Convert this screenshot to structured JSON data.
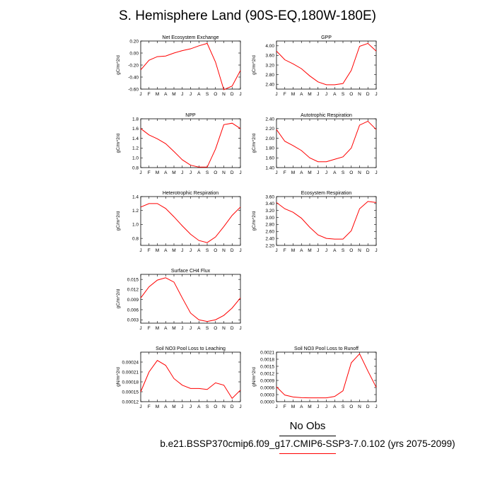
{
  "page": {
    "title": "S. Hemisphere Land (90S-EQ,180W-180E)",
    "obs_label": "No Obs",
    "case_label": "b.e21.BSSP370cmip6.f09_g17.CMIP6-SSP3-7.0.102 (yrs 2075-2099)",
    "line_color": "#ff0000"
  },
  "chart_data": [
    {
      "type": "line",
      "title": "Net Ecosystem Exchange",
      "ylabel": "gC/m^2/d",
      "x": [
        "J",
        "F",
        "M",
        "A",
        "M",
        "J",
        "J",
        "A",
        "S",
        "O",
        "N",
        "D",
        "J"
      ],
      "ylim": [
        -0.6,
        0.2
      ],
      "yticks": [
        "-0.60",
        "-0.40",
        "-0.20",
        "0.00",
        "0.20"
      ],
      "series": [
        {
          "values": [
            -0.28,
            -0.12,
            -0.06,
            -0.05,
            0.0,
            0.04,
            0.07,
            0.12,
            0.16,
            -0.15,
            -0.61,
            -0.55,
            -0.29
          ]
        }
      ]
    },
    {
      "type": "line",
      "title": "GPP",
      "ylabel": "gC/m^2/d",
      "x": [
        "J",
        "F",
        "M",
        "A",
        "M",
        "J",
        "J",
        "A",
        "S",
        "O",
        "N",
        "D",
        "J"
      ],
      "ylim": [
        2.2,
        4.2
      ],
      "yticks": [
        "2.40",
        "2.80",
        "3.20",
        "3.60",
        "4.00"
      ],
      "series": [
        {
          "values": [
            3.78,
            3.42,
            3.25,
            3.05,
            2.75,
            2.5,
            2.38,
            2.38,
            2.43,
            2.98,
            3.98,
            4.1,
            3.78
          ]
        }
      ]
    },
    {
      "type": "line",
      "title": "NPP",
      "ylabel": "gC/m^2/d",
      "x": [
        "J",
        "F",
        "M",
        "A",
        "M",
        "J",
        "J",
        "A",
        "S",
        "O",
        "N",
        "D",
        "J"
      ],
      "ylim": [
        0.8,
        1.8
      ],
      "yticks": [
        "0.8",
        "1.0",
        "1.2",
        "1.4",
        "1.6",
        "1.8"
      ],
      "series": [
        {
          "values": [
            1.6,
            1.47,
            1.39,
            1.29,
            1.13,
            0.96,
            0.85,
            0.81,
            0.81,
            1.18,
            1.68,
            1.71,
            1.6
          ]
        }
      ]
    },
    {
      "type": "line",
      "title": "Autotrophic Respiration",
      "ylabel": "gC/m^2/d",
      "x": [
        "J",
        "F",
        "M",
        "A",
        "M",
        "J",
        "J",
        "A",
        "S",
        "O",
        "N",
        "D",
        "J"
      ],
      "ylim": [
        1.4,
        2.4
      ],
      "yticks": [
        "1.40",
        "1.60",
        "1.80",
        "2.00",
        "2.20",
        "2.40"
      ],
      "series": [
        {
          "values": [
            2.18,
            1.94,
            1.85,
            1.75,
            1.6,
            1.52,
            1.52,
            1.57,
            1.62,
            1.8,
            2.27,
            2.35,
            2.18
          ]
        }
      ]
    },
    {
      "type": "line",
      "title": "Heterotrophic Respiration",
      "ylabel": "gC/m^2/d",
      "x": [
        "J",
        "F",
        "M",
        "A",
        "M",
        "J",
        "J",
        "A",
        "S",
        "O",
        "N",
        "D",
        "J"
      ],
      "ylim": [
        0.7,
        1.4
      ],
      "yticks": [
        "0.8",
        "1.0",
        "1.2",
        "1.4"
      ],
      "series": [
        {
          "values": [
            1.25,
            1.3,
            1.3,
            1.23,
            1.11,
            0.98,
            0.86,
            0.77,
            0.74,
            0.82,
            0.97,
            1.13,
            1.25
          ]
        }
      ]
    },
    {
      "type": "line",
      "title": "Ecosystem Respiration",
      "ylabel": "gC/m^2/d",
      "x": [
        "J",
        "F",
        "M",
        "A",
        "M",
        "J",
        "J",
        "A",
        "S",
        "O",
        "N",
        "D",
        "J"
      ],
      "ylim": [
        2.2,
        3.6
      ],
      "yticks": [
        "2.20",
        "2.40",
        "2.60",
        "2.80",
        "3.00",
        "3.20",
        "3.40",
        "3.60"
      ],
      "series": [
        {
          "values": [
            3.43,
            3.25,
            3.15,
            2.98,
            2.72,
            2.5,
            2.4,
            2.38,
            2.38,
            2.62,
            3.25,
            3.46,
            3.43
          ]
        }
      ]
    },
    {
      "type": "line",
      "title": "Surface CH4 Flux",
      "ylabel": "gC/m^2/d",
      "x": [
        "J",
        "F",
        "M",
        "A",
        "M",
        "J",
        "J",
        "A",
        "S",
        "O",
        "N",
        "D",
        "J"
      ],
      "ylim": [
        0.002,
        0.0165
      ],
      "yticks": [
        "0.003",
        "0.006",
        "0.009",
        "0.012",
        "0.015"
      ],
      "series": [
        {
          "values": [
            0.0095,
            0.0128,
            0.0148,
            0.0155,
            0.0142,
            0.0095,
            0.005,
            0.003,
            0.0025,
            0.003,
            0.0043,
            0.0065,
            0.0095
          ]
        }
      ]
    },
    {
      "type": "line",
      "title": "Soil NO3 Pool Loss to Leaching",
      "ylabel": "gN/m^2/d",
      "x": [
        "J",
        "F",
        "M",
        "A",
        "M",
        "J",
        "J",
        "A",
        "S",
        "O",
        "N",
        "D",
        "J"
      ],
      "ylim": [
        0.00012,
        0.00027
      ],
      "yticks": [
        "0.00012",
        "0.00015",
        "0.00018",
        "0.00021",
        "0.00024"
      ],
      "series": [
        {
          "values": [
            0.00015,
            0.00021,
            0.000245,
            0.00023,
            0.00019,
            0.00017,
            0.00016,
            0.00016,
            0.000157,
            0.000177,
            0.00017,
            0.00013,
            0.000155
          ]
        }
      ]
    },
    {
      "type": "line",
      "title": "Soil NO3 Pool Loss to Runoff",
      "ylabel": "gN/m^2/d",
      "x": [
        "J",
        "F",
        "M",
        "A",
        "M",
        "J",
        "J",
        "A",
        "S",
        "O",
        "N",
        "D",
        "J"
      ],
      "ylim": [
        0.0,
        0.0021
      ],
      "yticks": [
        "0.0000",
        "0.0003",
        "0.0006",
        "0.0009",
        "0.0012",
        "0.0015",
        "0.0018",
        "0.0021"
      ],
      "series": [
        {
          "values": [
            0.00063,
            0.00028,
            0.0002,
            0.00017,
            0.00016,
            0.00016,
            0.00016,
            0.00022,
            0.00046,
            0.00165,
            0.00203,
            0.0013,
            0.00061
          ]
        }
      ]
    }
  ]
}
